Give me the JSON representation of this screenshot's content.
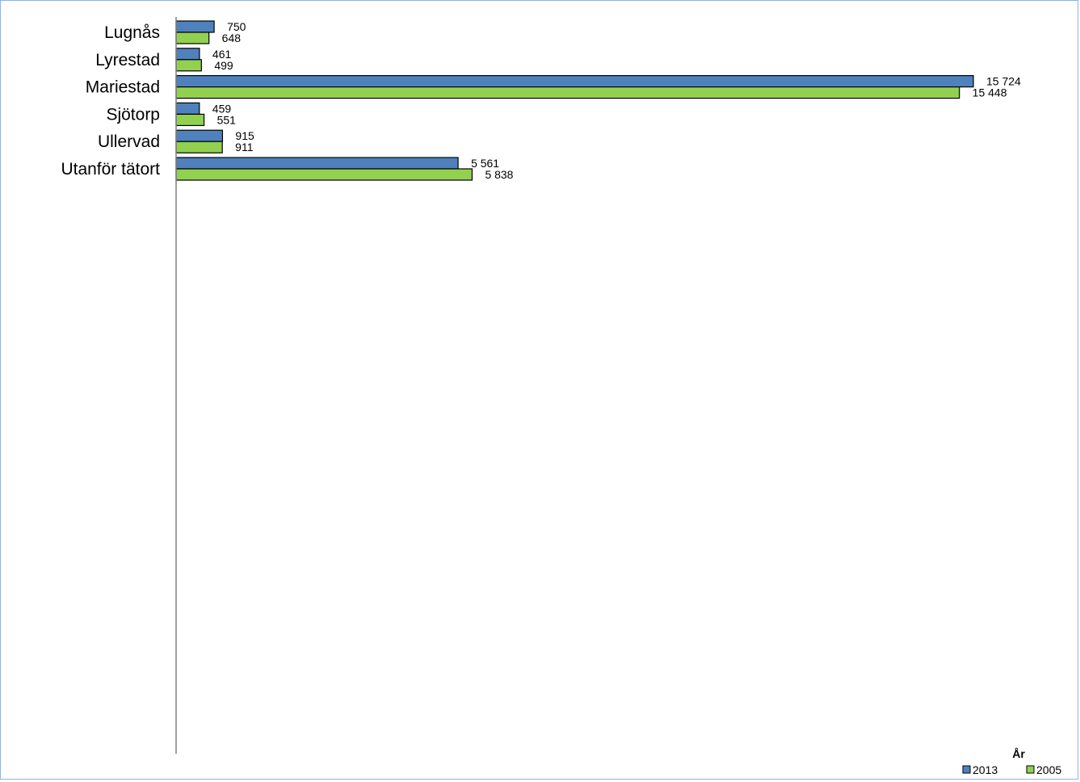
{
  "chart_data": {
    "type": "bar",
    "orientation": "horizontal",
    "categories": [
      "Lugnås",
      "Lyrestad",
      "Mariestad",
      "Sjötorp",
      "Ullervad",
      "Utanför tätort"
    ],
    "series": [
      {
        "name": "2013",
        "color": "#4f81bd",
        "values": [
          750,
          461,
          15724,
          459,
          915,
          5561
        ],
        "labels": [
          "750",
          "461",
          "15 724",
          "459",
          "915",
          "5 561"
        ]
      },
      {
        "name": "2005",
        "color": "#92d050",
        "values": [
          648,
          499,
          15448,
          551,
          911,
          5838
        ],
        "labels": [
          "648",
          "499",
          "15 448",
          "551",
          "911",
          "5 838"
        ]
      }
    ],
    "xlim": [
      0,
      15724
    ],
    "grid": false,
    "legend": {
      "title": "År",
      "position": "bottom-right"
    }
  }
}
